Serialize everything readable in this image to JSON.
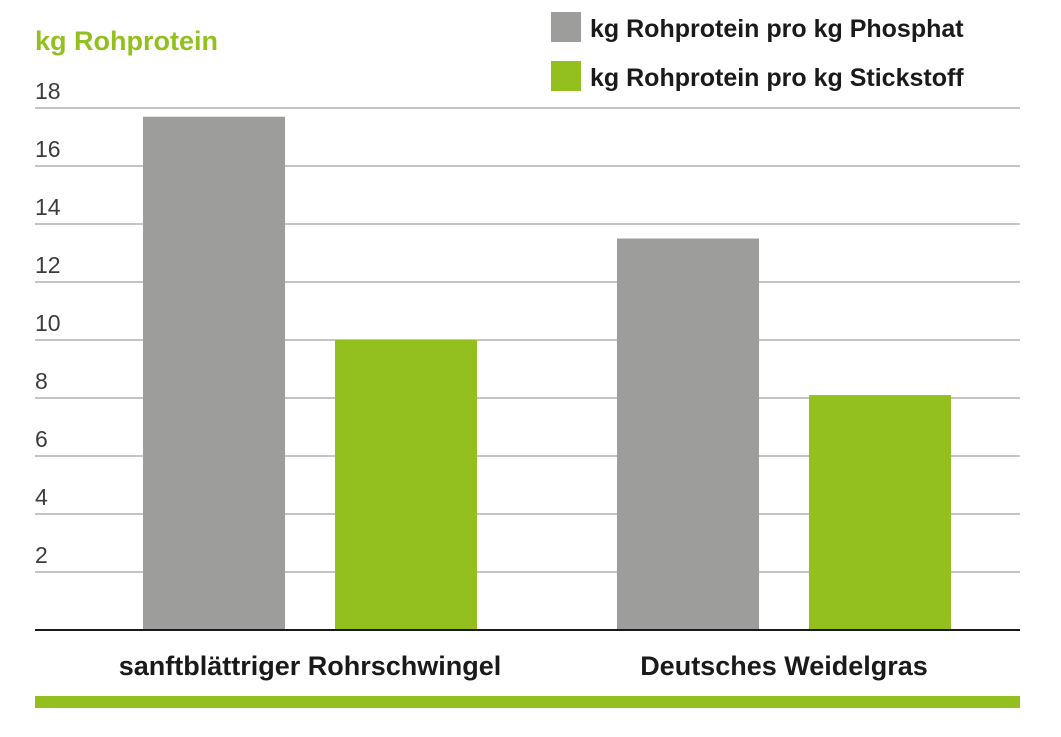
{
  "chart_data": {
    "type": "bar",
    "ylabel": "kg Rohprotein",
    "xlabel": "",
    "categories": [
      "sanftblättriger Rohrschwingel",
      "Deutsches Weidelgras"
    ],
    "series": [
      {
        "name": "kg Rohprotein pro kg Phosphat",
        "values": [
          17.7,
          13.5
        ],
        "color": "#9d9d9c"
      },
      {
        "name": "kg Rohprotein pro kg Stickstoff",
        "values": [
          10.0,
          8.1
        ],
        "color": "#93c01f"
      }
    ],
    "ylim": [
      0,
      18
    ],
    "yticks": [
      2,
      4,
      6,
      8,
      10,
      12,
      14,
      16,
      18
    ],
    "ytick_labels": [
      "2",
      "4",
      "6",
      "8",
      "10",
      "12",
      "14",
      "16",
      "18"
    ],
    "grid": true,
    "legend_position": "top-right"
  },
  "colors": {
    "accent": "#93c01f",
    "grid": "#8a8a8a",
    "axis": "#1a1a1a"
  }
}
